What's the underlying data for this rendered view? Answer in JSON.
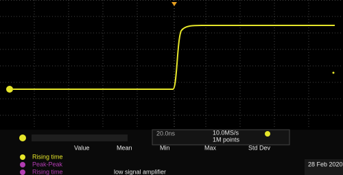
{
  "screen": {
    "timebase": "20.0ns",
    "sample_rate": "10.0MS/s",
    "record_length": "1M points"
  },
  "measurements": {
    "headers": [
      "Value",
      "Mean",
      "Min",
      "Max",
      "Std Dev"
    ],
    "rows": [
      {
        "label": "Rising time"
      },
      {
        "label": "Peak-Peak"
      },
      {
        "label": "Rising time"
      }
    ]
  },
  "note": "low signal amplifier",
  "date": "28 Feb 2020"
}
